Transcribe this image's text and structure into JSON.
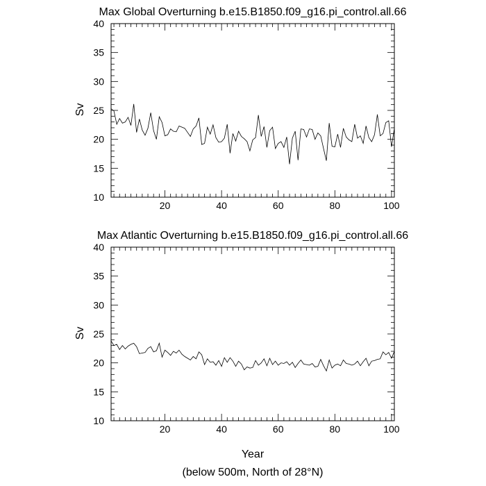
{
  "chart_data": [
    {
      "type": "line",
      "title": "Max Global Overturning b.e15.B1850.f09_g16.pi_control.all.66",
      "xlabel": "",
      "ylabel": "Sv",
      "xlim": [
        1,
        101
      ],
      "ylim": [
        10,
        40
      ],
      "xticks": [
        20,
        40,
        60,
        80,
        100
      ],
      "yticks": [
        10,
        15,
        20,
        25,
        30,
        35,
        40
      ],
      "grid": false,
      "series": [
        {
          "x": [
            1,
            2,
            3,
            4,
            5,
            6,
            7,
            8,
            9,
            10,
            11,
            12,
            13,
            14,
            15,
            16,
            17,
            18,
            19,
            20,
            21,
            22,
            23,
            24,
            25,
            26,
            27,
            28,
            29,
            30,
            31,
            32,
            33,
            34,
            35,
            36,
            37,
            38,
            39,
            40,
            41,
            42,
            43,
            44,
            45,
            46,
            47,
            48,
            49,
            50,
            51,
            52,
            53,
            54,
            55,
            56,
            57,
            58,
            59,
            60,
            61,
            62,
            63,
            64,
            65,
            66,
            67,
            68,
            69,
            70,
            71,
            72,
            73,
            74,
            75,
            76,
            77,
            78,
            79,
            80,
            81,
            82,
            83,
            84,
            85,
            86,
            87,
            88,
            89,
            90,
            91,
            92,
            93,
            94,
            95,
            96,
            97,
            98,
            99,
            100,
            101
          ],
          "y": [
            25.3,
            24.9,
            22.6,
            23.6,
            22.8,
            23.0,
            23.8,
            22.4,
            26.1,
            21.2,
            23.5,
            21.6,
            20.7,
            21.9,
            24.6,
            21.5,
            20.0,
            23.9,
            22.9,
            20.6,
            20.8,
            21.8,
            21.4,
            21.3,
            22.3,
            22.1,
            21.9,
            21.2,
            20.5,
            21.8,
            22.3,
            23.7,
            19.1,
            19.3,
            22.1,
            20.9,
            22.5,
            20.3,
            19.5,
            19.6,
            20.2,
            22.6,
            17.6,
            21.0,
            19.7,
            21.4,
            20.5,
            20.1,
            19.6,
            18.0,
            19.9,
            20.3,
            24.2,
            20.5,
            22.2,
            18.6,
            21.5,
            22.1,
            18.4,
            19.3,
            19.6,
            18.6,
            20.4,
            15.7,
            20.2,
            21.4,
            16.4,
            21.8,
            21.7,
            20.4,
            21.8,
            21.7,
            20.0,
            21.1,
            20.6,
            18.4,
            16.3,
            22.8,
            18.8,
            18.7,
            20.9,
            18.6,
            21.9,
            20.4,
            19.9,
            19.6,
            22.6,
            20.2,
            20.6,
            19.3,
            22.3,
            20.3,
            19.6,
            20.8,
            24.3,
            20.6,
            21.0,
            22.9,
            23.2,
            18.7,
            21.9
          ]
        }
      ]
    },
    {
      "type": "line",
      "title": "Max Atlantic Overturning b.e15.B1850.f09_g16.pi_control.all.66",
      "xlabel": "Year",
      "ylabel": "Sv",
      "xlim": [
        1,
        101
      ],
      "ylim": [
        10,
        40
      ],
      "xticks": [
        20,
        40,
        60,
        80,
        100
      ],
      "yticks": [
        10,
        15,
        20,
        25,
        30,
        35,
        40
      ],
      "grid": false,
      "series": [
        {
          "x": [
            1,
            2,
            3,
            4,
            5,
            6,
            7,
            8,
            9,
            10,
            11,
            12,
            13,
            14,
            15,
            16,
            17,
            18,
            19,
            20,
            21,
            22,
            23,
            24,
            25,
            26,
            27,
            28,
            29,
            30,
            31,
            32,
            33,
            34,
            35,
            36,
            37,
            38,
            39,
            40,
            41,
            42,
            43,
            44,
            45,
            46,
            47,
            48,
            49,
            50,
            51,
            52,
            53,
            54,
            55,
            56,
            57,
            58,
            59,
            60,
            61,
            62,
            63,
            64,
            65,
            66,
            67,
            68,
            69,
            70,
            71,
            72,
            73,
            74,
            75,
            76,
            77,
            78,
            79,
            80,
            81,
            82,
            83,
            84,
            85,
            86,
            87,
            88,
            89,
            90,
            91,
            92,
            93,
            94,
            95,
            96,
            97,
            98,
            99,
            100,
            101
          ],
          "y": [
            23.8,
            23.0,
            23.2,
            22.3,
            23.0,
            22.4,
            22.9,
            23.2,
            23.4,
            22.8,
            21.6,
            21.7,
            21.8,
            22.5,
            22.8,
            21.9,
            22.1,
            23.4,
            21.0,
            22.2,
            21.8,
            21.3,
            22.0,
            21.7,
            22.2,
            21.5,
            21.1,
            20.8,
            20.5,
            21.1,
            20.7,
            21.9,
            21.4,
            19.7,
            20.7,
            20.1,
            20.2,
            19.6,
            20.4,
            19.4,
            20.9,
            20.1,
            20.9,
            20.3,
            19.4,
            20.3,
            19.8,
            18.8,
            19.3,
            19.1,
            19.2,
            20.4,
            19.6,
            20.0,
            20.7,
            19.5,
            20.8,
            19.7,
            20.3,
            19.6,
            20.0,
            19.9,
            20.2,
            19.6,
            20.1,
            19.2,
            19.9,
            20.5,
            19.8,
            19.7,
            19.6,
            19.9,
            19.3,
            19.4,
            20.6,
            19.5,
            18.6,
            20.5,
            19.1,
            19.6,
            19.8,
            19.5,
            20.5,
            19.9,
            19.8,
            19.6,
            19.8,
            20.3,
            19.5,
            20.2,
            20.8,
            19.5,
            20.3,
            20.4,
            20.6,
            20.7,
            21.9,
            21.4,
            21.8,
            20.8,
            22.0
          ]
        }
      ]
    }
  ],
  "footer_note": "(below 500m, North of 28°N)"
}
